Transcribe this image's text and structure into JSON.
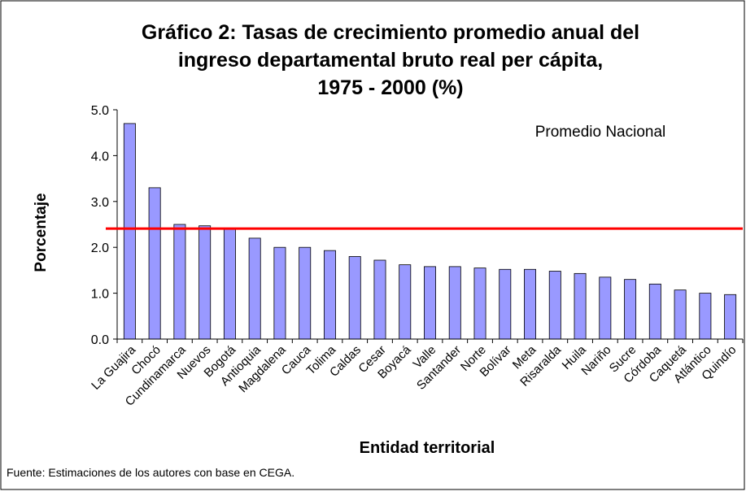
{
  "chart_data": {
    "type": "bar",
    "title": "Gráfico 2: Tasas de crecimiento promedio anual del",
    "title_line2": "ingreso departamental bruto real per cápita,",
    "title_line3": "1975 - 2000 (%)",
    "y_label": "Porcentaje",
    "x_label": "Entidad territorial",
    "source": "Fuente: Estimaciones de los autores con base en CEGA.",
    "categories": [
      "La Guajira",
      "Chocó",
      "Cundinamarca",
      "Nuevos",
      "Bogotá",
      "Antioquia",
      "Magdalena",
      "Cauca",
      "Tolima",
      "Caldas",
      "Cesar",
      "Boyacá",
      "Valle",
      "Santander",
      "Norte",
      "Bolívar",
      "Meta",
      "Risaralda",
      "Huila",
      "Nariño",
      "Sucre",
      "Córdoba",
      "Caquetá",
      "Atlántico",
      "Quindío"
    ],
    "values": [
      4.7,
      3.3,
      2.5,
      2.47,
      2.42,
      2.2,
      2.0,
      2.0,
      1.93,
      1.8,
      1.72,
      1.62,
      1.58,
      1.58,
      1.55,
      1.52,
      1.52,
      1.48,
      1.43,
      1.35,
      1.3,
      1.2,
      1.07,
      1.0,
      0.97
    ],
    "color": "#9999ff",
    "reference_line": {
      "value": 2.41,
      "label": "Promedio Nacional",
      "color": "#ff0000"
    },
    "ylim": [
      0,
      5
    ],
    "yticks": [
      {
        "value": 0,
        "label": "0.0"
      },
      {
        "value": 1,
        "label": "1.0"
      },
      {
        "value": 2,
        "label": "2.0"
      },
      {
        "value": 3,
        "label": "3.0"
      },
      {
        "value": 4,
        "label": "4.0"
      },
      {
        "value": 5,
        "label": "5.0"
      }
    ],
    "grid": false
  }
}
